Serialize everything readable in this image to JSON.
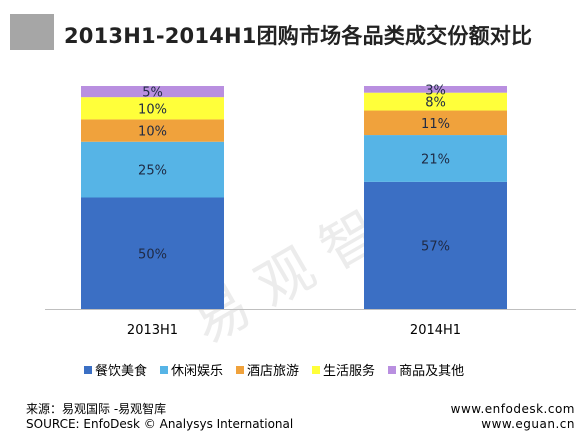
{
  "title": "2013H1-2014H1团购市场各品类成交份额对比",
  "colors": {
    "title_bar": "#a6a6a6",
    "series": [
      "#3b6fc4",
      "#56b4e6",
      "#f0a23c",
      "#ffff3a",
      "#b98fe0"
    ]
  },
  "chart_data": {
    "type": "bar",
    "stacked": true,
    "categories": [
      "2013H1",
      "2014H1"
    ],
    "series": [
      {
        "name": "餐饮美食",
        "values": [
          50,
          57
        ]
      },
      {
        "name": "休闲娱乐",
        "values": [
          25,
          21
        ]
      },
      {
        "name": "酒店旅游",
        "values": [
          10,
          11
        ]
      },
      {
        "name": "生活服务",
        "values": [
          10,
          8
        ]
      },
      {
        "name": "商品及其他",
        "values": [
          5,
          3
        ]
      }
    ],
    "value_labels": [
      [
        "50%",
        "25%",
        "10%",
        "10%",
        "5%"
      ],
      [
        "57%",
        "21%",
        "11%",
        "8%",
        "3%"
      ]
    ],
    "ylim": [
      0,
      100
    ],
    "legend_position": "bottom"
  },
  "watermark": "易观智库",
  "footer": {
    "source_cn": "来源：易观国际 -易观智库",
    "source_en": "SOURCE: EnfoDesk © Analysys International",
    "url1": "www.enfodesk.com",
    "url2": "www.eguan.cn"
  }
}
